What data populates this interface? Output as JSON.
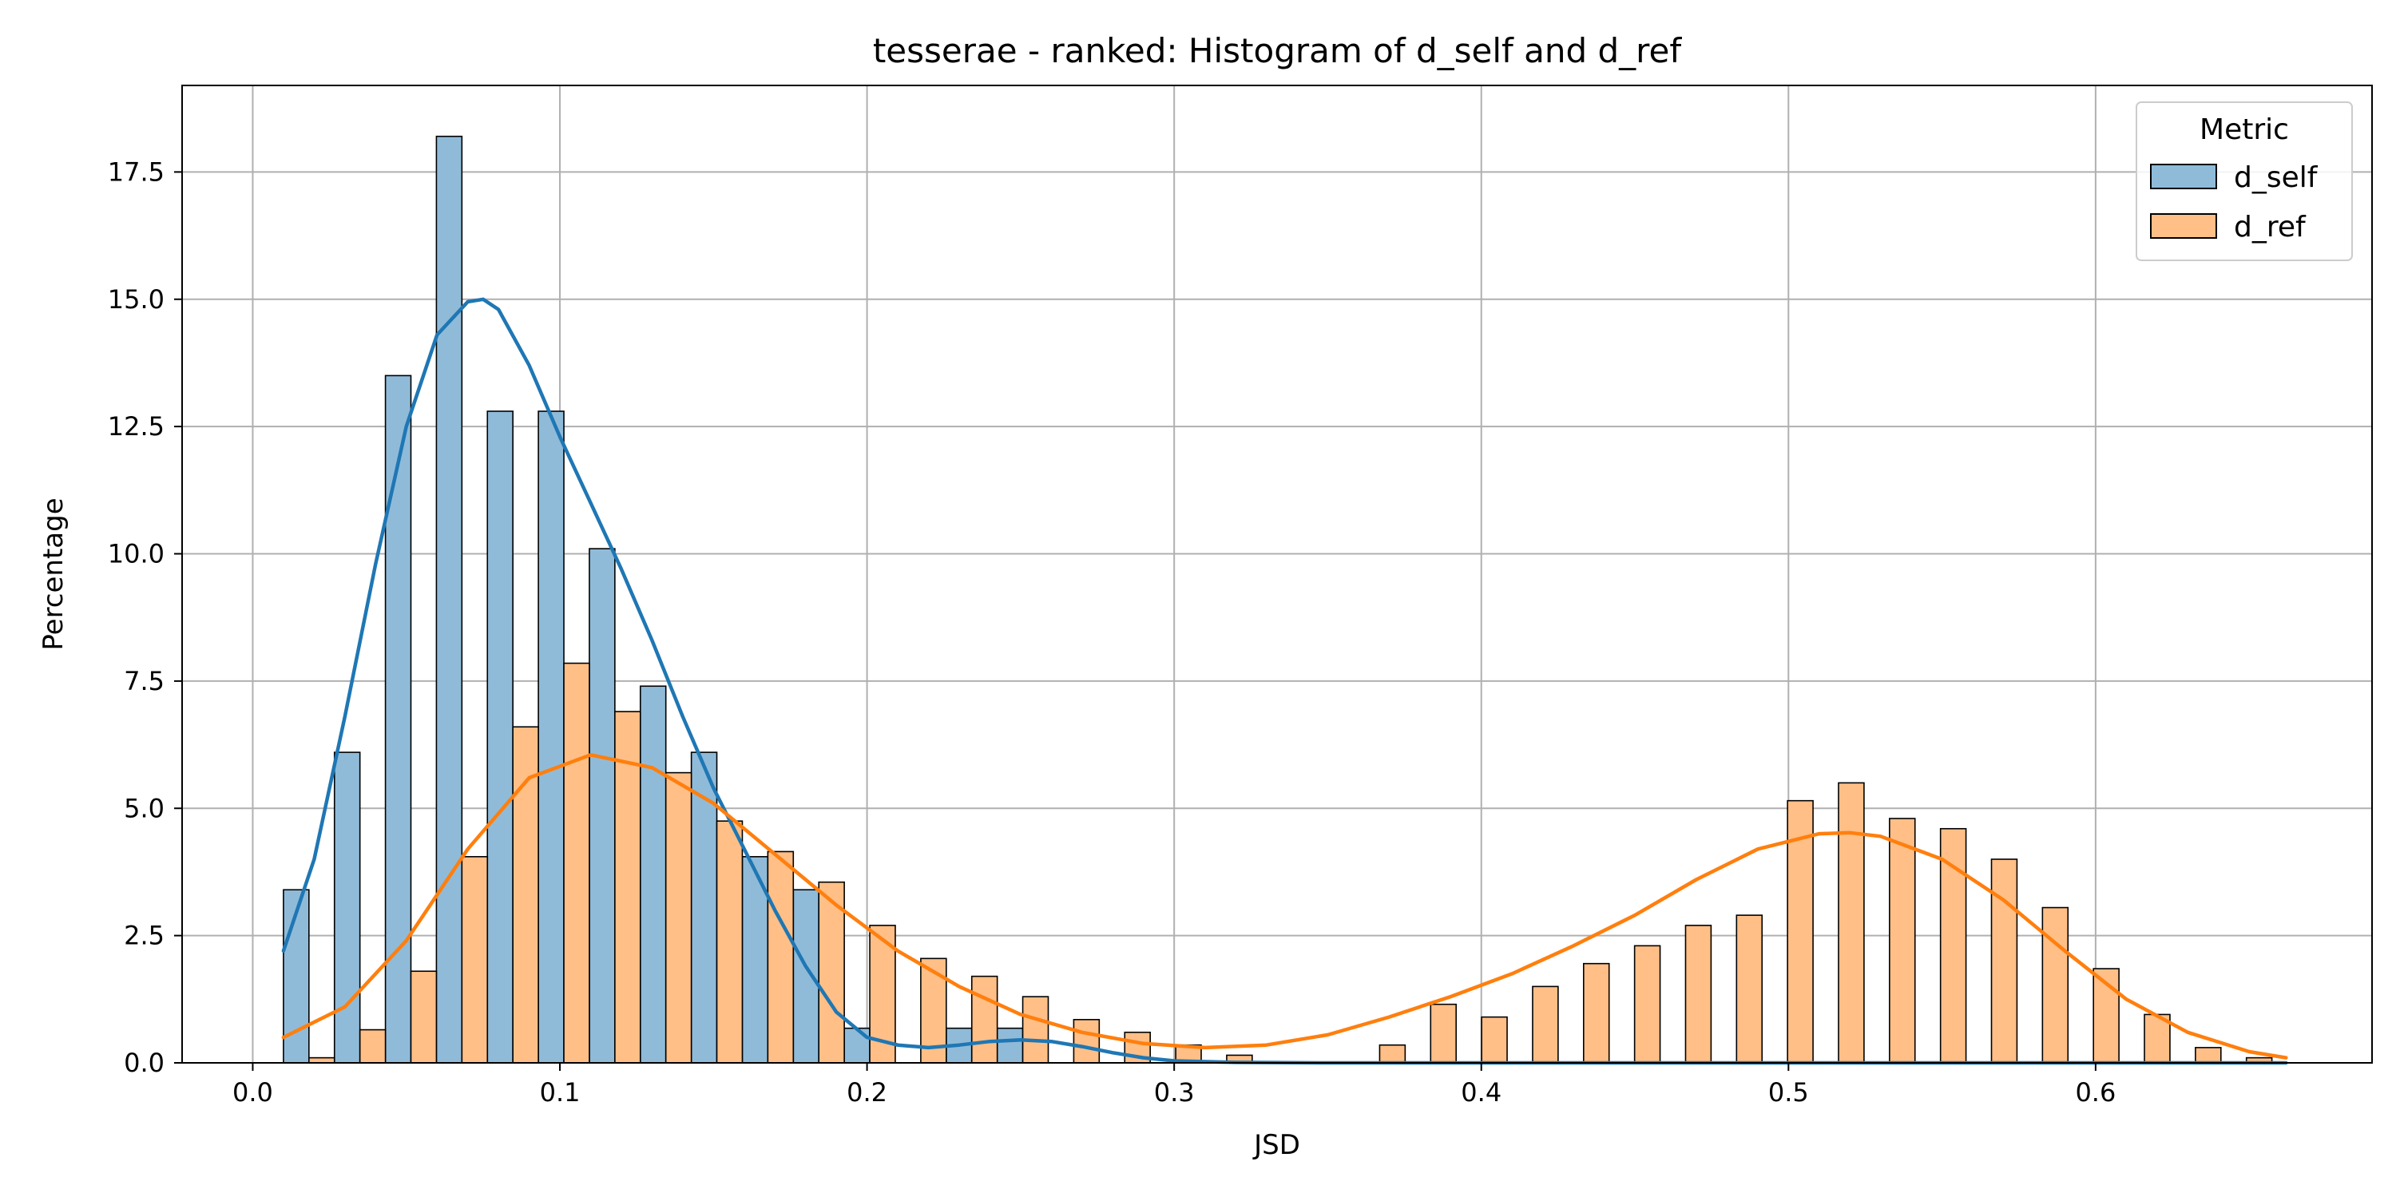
{
  "chart_data": {
    "type": "bar",
    "title": "tesserae - ranked: Histogram of d_self and d_ref",
    "xlabel": "JSD",
    "ylabel": "Percentage",
    "xlim": [
      -0.023,
      0.69
    ],
    "ylim": [
      0,
      19.2
    ],
    "x_ticks": [
      0.0,
      0.1,
      0.2,
      0.3,
      0.4,
      0.5,
      0.6
    ],
    "x_tick_labels": [
      "0.0",
      "0.1",
      "0.2",
      "0.3",
      "0.4",
      "0.5",
      "0.6"
    ],
    "y_ticks": [
      0,
      2.5,
      5.0,
      7.5,
      10.0,
      12.5,
      15.0,
      17.5
    ],
    "y_tick_labels": [
      "0.0",
      "2.5",
      "5.0",
      "7.5",
      "10.0",
      "12.5",
      "15.0",
      "17.5"
    ],
    "grid": true,
    "legend": {
      "title": "Metric",
      "placement": "top-right"
    },
    "bin_start": 0.01,
    "bin_width": 0.0166,
    "series": [
      {
        "name": "d_self",
        "color": "#1f77b4",
        "fill": "#8fbbd9",
        "values": [
          3.4,
          6.1,
          13.5,
          18.2,
          12.8,
          12.8,
          10.1,
          7.4,
          6.1,
          4.05,
          3.4,
          0.68,
          0,
          0.68,
          0.68,
          0,
          0,
          0,
          0,
          0,
          0,
          0,
          0,
          0,
          0,
          0,
          0,
          0,
          0,
          0,
          0,
          0,
          0,
          0,
          0,
          0,
          0,
          0,
          0,
          0
        ],
        "kde_x": [
          0.01,
          0.02,
          0.03,
          0.04,
          0.05,
          0.06,
          0.07,
          0.075,
          0.08,
          0.09,
          0.1,
          0.11,
          0.12,
          0.13,
          0.14,
          0.15,
          0.16,
          0.17,
          0.18,
          0.19,
          0.2,
          0.21,
          0.22,
          0.23,
          0.24,
          0.25,
          0.26,
          0.27,
          0.28,
          0.29,
          0.3,
          0.32,
          0.35,
          0.4,
          0.5,
          0.6,
          0.662
        ],
        "kde_y": [
          2.2,
          4.0,
          6.8,
          9.8,
          12.5,
          14.3,
          14.95,
          15.0,
          14.8,
          13.7,
          12.3,
          11.0,
          9.7,
          8.3,
          6.8,
          5.4,
          4.2,
          3.0,
          1.9,
          1.0,
          0.5,
          0.35,
          0.3,
          0.35,
          0.42,
          0.45,
          0.42,
          0.32,
          0.2,
          0.1,
          0.04,
          0.01,
          0,
          0,
          0,
          0,
          0
        ]
      },
      {
        "name": "d_ref",
        "color": "#ff7f0e",
        "fill": "#ffbf86",
        "values": [
          0.1,
          0.65,
          1.8,
          4.05,
          6.6,
          7.85,
          6.9,
          5.7,
          4.75,
          4.15,
          3.55,
          2.7,
          2.05,
          1.7,
          1.3,
          0.85,
          0.6,
          0.35,
          0.15,
          0,
          0,
          0.35,
          1.15,
          0.9,
          1.5,
          1.95,
          2.3,
          2.7,
          2.9,
          5.15,
          5.5,
          4.8,
          4.6,
          4.0,
          3.05,
          1.85,
          0.95,
          0.3,
          0.1,
          0
        ],
        "kde_x": [
          0.01,
          0.03,
          0.05,
          0.07,
          0.09,
          0.11,
          0.13,
          0.15,
          0.17,
          0.19,
          0.21,
          0.23,
          0.25,
          0.27,
          0.29,
          0.31,
          0.33,
          0.35,
          0.37,
          0.39,
          0.41,
          0.43,
          0.45,
          0.47,
          0.49,
          0.51,
          0.52,
          0.53,
          0.55,
          0.57,
          0.59,
          0.61,
          0.63,
          0.65,
          0.662
        ],
        "kde_y": [
          0.5,
          1.1,
          2.4,
          4.2,
          5.6,
          6.05,
          5.8,
          5.1,
          4.1,
          3.1,
          2.2,
          1.5,
          0.95,
          0.6,
          0.38,
          0.3,
          0.35,
          0.55,
          0.9,
          1.3,
          1.75,
          2.3,
          2.9,
          3.6,
          4.2,
          4.5,
          4.52,
          4.45,
          4.0,
          3.2,
          2.2,
          1.25,
          0.6,
          0.22,
          0.1
        ]
      }
    ]
  }
}
